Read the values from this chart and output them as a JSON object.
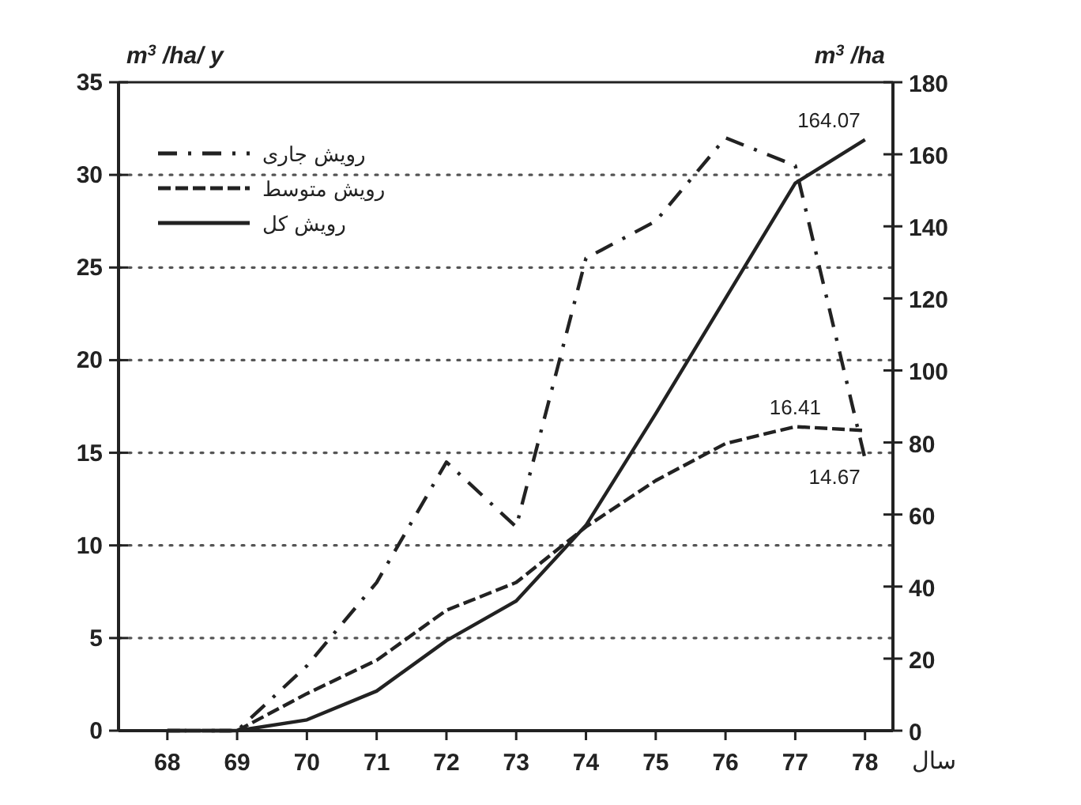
{
  "chart_data": {
    "type": "line",
    "x": [
      68,
      69,
      70,
      71,
      72,
      73,
      74,
      75,
      76,
      77,
      78
    ],
    "xlabel": "سال",
    "ylabel": "m$^{3}$ /ha/ y",
    "y2label": "m$^{3}$ /ha",
    "xlim": [
      67.3,
      78.4
    ],
    "xticks": [
      68,
      69,
      70,
      71,
      72,
      73,
      74,
      75,
      76,
      77,
      78
    ],
    "ylim": [
      0,
      35
    ],
    "yticks": [
      0,
      5,
      10,
      15,
      20,
      25,
      30,
      35
    ],
    "y2lim": [
      0,
      180
    ],
    "y2ticks": [
      0,
      20,
      40,
      60,
      80,
      100,
      120,
      140,
      160,
      180
    ],
    "grid": "y",
    "legend": "top left",
    "series": [
      {
        "name": "رویش جاری",
        "color": "#222222",
        "line_style": "dashdot",
        "values": [
          0,
          0,
          3.5,
          8,
          14.5,
          11,
          25.5,
          27.5,
          32,
          30.5,
          14.67
        ],
        "value_labels": [
          null,
          null,
          null,
          null,
          null,
          null,
          null,
          null,
          null,
          null,
          "14.67"
        ]
      },
      {
        "name": "رویش متوسط",
        "color": "#222222",
        "line_style": "dashed",
        "values": [
          0,
          0,
          2,
          3.8,
          6.5,
          8,
          11,
          13.5,
          15.5,
          16.41,
          16.2
        ],
        "value_labels": [
          null,
          null,
          null,
          null,
          null,
          null,
          null,
          null,
          null,
          "16.41",
          null
        ]
      },
      {
        "name": "رویش کل",
        "color": "#222222",
        "line_style": "solid",
        "axis": "y2",
        "values": [
          0,
          0,
          3,
          11,
          25,
          36,
          57,
          88,
          120,
          152,
          164.07
        ],
        "value_labels": [
          null,
          null,
          null,
          null,
          null,
          null,
          null,
          null,
          null,
          null,
          "164.07"
        ]
      }
    ]
  }
}
